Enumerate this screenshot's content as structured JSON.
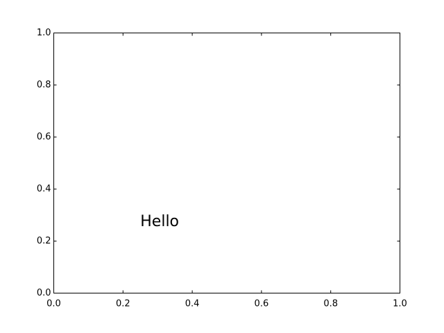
{
  "chart_data": {
    "type": "scatter",
    "title": "",
    "xlabel": "",
    "ylabel": "",
    "xlim": [
      0,
      1
    ],
    "ylim": [
      0,
      1
    ],
    "grid": false,
    "x_ticks": [
      0.0,
      0.2,
      0.4,
      0.6,
      0.8,
      1.0
    ],
    "y_ticks": [
      0.0,
      0.2,
      0.4,
      0.6,
      0.8,
      1.0
    ],
    "x_tick_labels": [
      "0.0",
      "0.2",
      "0.4",
      "0.6",
      "0.8",
      "1.0"
    ],
    "y_tick_labels": [
      "0.0",
      "0.2",
      "0.4",
      "0.6",
      "0.8",
      "1.0"
    ],
    "series": [],
    "annotations": [
      {
        "text": "Hello",
        "x": 0.25,
        "y": 0.25
      }
    ]
  }
}
